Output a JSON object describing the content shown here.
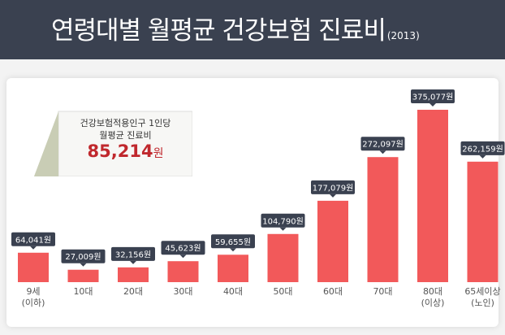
{
  "title": {
    "main": "연령대별 월평균 건강보험 진료비",
    "year": "(2013)"
  },
  "summary": {
    "line1": "건강보험적용인구 1인당",
    "line2": "월평균 진료비",
    "value": "85,214",
    "unit": "원"
  },
  "colors": {
    "bar": "#f2595a",
    "label_bg": "#3a4150",
    "header_bg": "#3a4150",
    "accent": "#c0282d"
  },
  "chart_data": {
    "type": "bar",
    "title": "연령대별 월평균 건강보험 진료비",
    "categories": [
      "9세\n(이하)",
      "10대",
      "20대",
      "30대",
      "40대",
      "50대",
      "60대",
      "70대",
      "80대\n(이상)",
      "65세이상\n(노인)"
    ],
    "values": [
      64041,
      27009,
      32156,
      45623,
      59655,
      104790,
      177079,
      272097,
      375077,
      262159
    ],
    "value_labels": [
      "64,041원",
      "27,009원",
      "32,156원",
      "45,623원",
      "59,655원",
      "104,790원",
      "177,079원",
      "272,097원",
      "375,077원",
      "262,159원"
    ],
    "ylim": [
      0,
      375077
    ],
    "grid": false,
    "legend": "none"
  }
}
